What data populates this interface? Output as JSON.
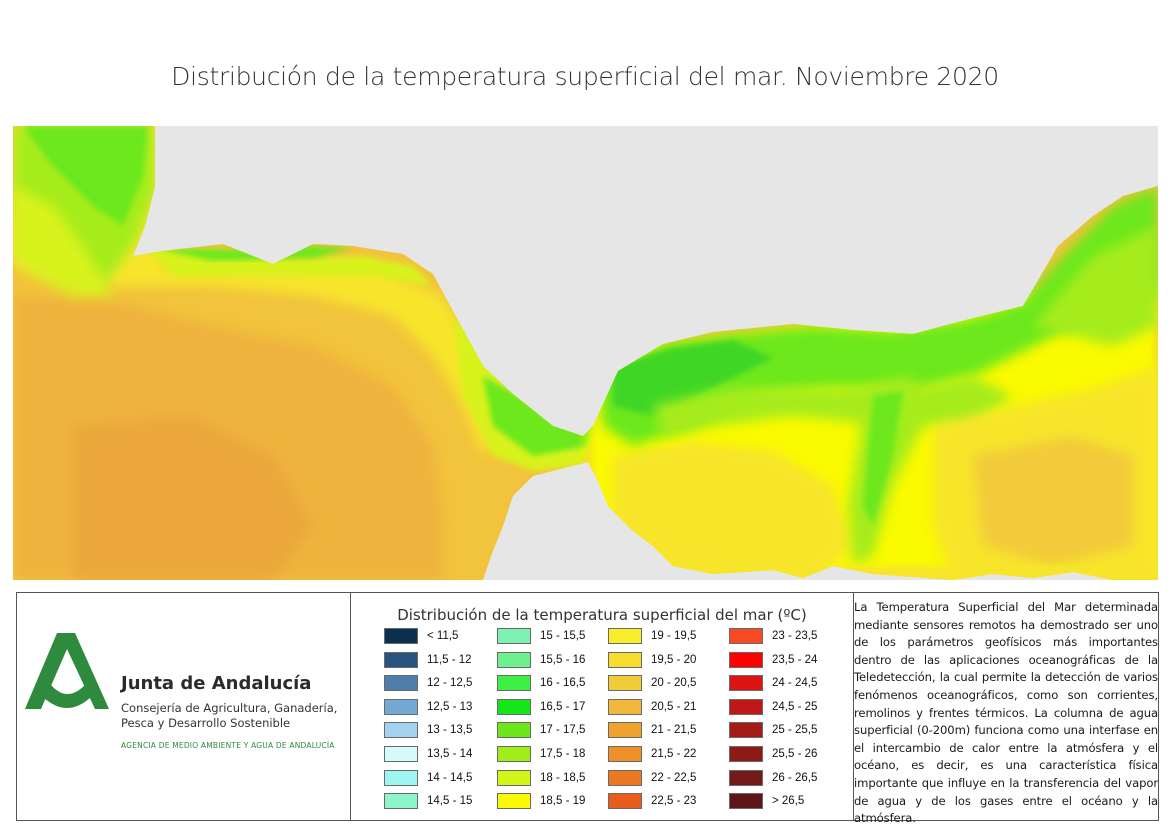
{
  "title": "Distribución de la temperatura superficial del mar. Noviembre 2020",
  "logo": {
    "name": "Junta de Andalucía",
    "subtitle": "Consejería de Agricultura, Ganadería, Pesca y Desarrollo Sostenible",
    "agency": "AGENCIA DE MEDIO AMBIENTE Y AGUA DE ANDALUCÍA",
    "color": "#2e8b3e"
  },
  "legend": {
    "title": "Distribución de la temperatura superficial del mar (ºC)",
    "columns": [
      [
        {
          "label": "< 11,5",
          "color": "#0b2f4e"
        },
        {
          "label": "11,5 - 12",
          "color": "#2a5480"
        },
        {
          "label": "12 - 12,5",
          "color": "#4f7eab"
        },
        {
          "label": "12,5 - 13",
          "color": "#74a9d6"
        },
        {
          "label": "13 - 13,5",
          "color": "#a3d2ee"
        },
        {
          "label": "13,5 - 14",
          "color": "#d4fafa"
        },
        {
          "label": "14 - 14,5",
          "color": "#9ff5f0"
        },
        {
          "label": "14,5 - 15",
          "color": "#8df5cc"
        }
      ],
      [
        {
          "label": "15 - 15,5",
          "color": "#7ef2b3"
        },
        {
          "label": "15,5 - 16",
          "color": "#6ff08f"
        },
        {
          "label": "16 - 16,5",
          "color": "#3fef45"
        },
        {
          "label": "16,5 - 17",
          "color": "#14e61a"
        },
        {
          "label": "17 - 17,5",
          "color": "#6ce81a"
        },
        {
          "label": "17,5 - 18",
          "color": "#a0ee18"
        },
        {
          "label": "18 - 18,5",
          "color": "#d4f51a"
        },
        {
          "label": "18,5 - 19",
          "color": "#fafa05"
        }
      ],
      [
        {
          "label": "19 - 19,5",
          "color": "#f9ee2c"
        },
        {
          "label": "19,5 - 20",
          "color": "#f6dd30"
        },
        {
          "label": "20 - 20,5",
          "color": "#f2cb3a"
        },
        {
          "label": "20,5 - 21",
          "color": "#f2b83c"
        },
        {
          "label": "21 - 21,5",
          "color": "#f0a231"
        },
        {
          "label": "21,5 - 22",
          "color": "#ee8f2a"
        },
        {
          "label": "22 - 22,5",
          "color": "#ec7822"
        },
        {
          "label": "22,5 - 23",
          "color": "#ea5c1b"
        }
      ],
      [
        {
          "label": "23 - 23,5",
          "color": "#f84a22"
        },
        {
          "label": "23,5 - 24",
          "color": "#ff0000"
        },
        {
          "label": "24 - 24,5",
          "color": "#dd1414"
        },
        {
          "label": "24,5 - 25",
          "color": "#bf1818"
        },
        {
          "label": "25 - 25,5",
          "color": "#a41b17"
        },
        {
          "label": "25,5 - 26",
          "color": "#8e1a18"
        },
        {
          "label": "26 - 26,5",
          "color": "#751a18"
        },
        {
          "label": "> 26,5",
          "color": "#5e1518"
        }
      ]
    ]
  },
  "description": "La Temperatura Superficial del Mar determinada mediante sensores remotos ha demostrado ser uno de los parámetros geofísicos más importantes dentro de las aplicaciones oceanográficas de la Teledetección, la cual permite la detección de varios fenómenos oceanográficos, como son corrientes, remolinos y frentes térmicos. La columna de agua superficial (0-200m) funciona como una interfase en el intercambio de calor entre la atmósfera y el océano, es decir, es una característica física importante que influye en la transferencia del vapor de agua y de los gases entre el océano y la atmósfera.",
  "map_colors": {
    "land": "#e6e6e6",
    "warm_orange": "#eeb33e",
    "orange_light": "#f2c33c",
    "yellow": "#f7e52c",
    "yellow_bright": "#fafa05",
    "yellow_green": "#d8f21c",
    "light_green": "#a6ec1a",
    "green": "#6ce81a",
    "green_dark": "#3fd628"
  }
}
